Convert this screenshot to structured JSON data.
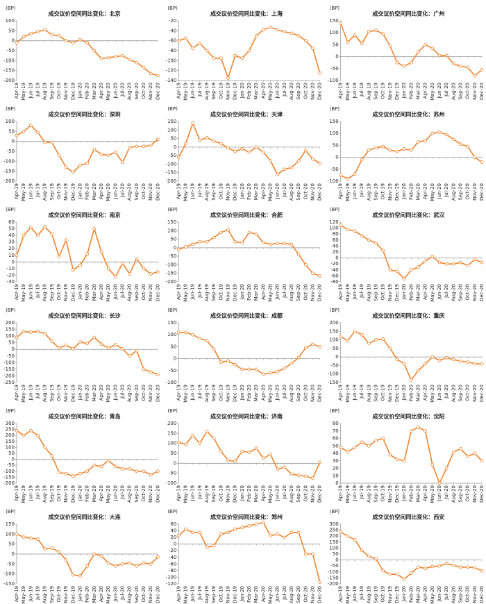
{
  "chart_data": [
    {
      "type": "line",
      "title": "成交议价空间同比变化：北京",
      "unit": "(BP)",
      "categories": [
        "Apr-19",
        "May-19",
        "Jun-19",
        "Jul-19",
        "Aug-19",
        "Sep-19",
        "Oct-19",
        "Nov-19",
        "Dec-19",
        "Jan-20",
        "Feb-20",
        "Mar-20",
        "Apr-20",
        "May-20",
        "Jun-20",
        "Jul-20",
        "Aug-20",
        "Sep-20",
        "Oct-20",
        "Nov-20",
        "Dec-20"
      ],
      "values": [
        -10,
        20,
        35,
        45,
        55,
        30,
        25,
        0,
        -10,
        5,
        -10,
        -50,
        -90,
        -85,
        -80,
        -75,
        -95,
        -110,
        -135,
        -165,
        -175
      ],
      "color": "#f0832a",
      "ylim": [
        -200,
        100
      ],
      "yticks": [
        -200,
        -150,
        -100,
        -50,
        0,
        50,
        100
      ]
    },
    {
      "type": "line",
      "title": "成交议价空间同比变化：上海",
      "unit": "(BP)",
      "categories": [
        "Apr-19",
        "May-19",
        "Jun-19",
        "Jul-19",
        "Aug-19",
        "Sep-19",
        "Oct-19",
        "Nov-19",
        "Dec-19",
        "Jan-20",
        "Feb-20",
        "Mar-20",
        "Apr-20",
        "May-20",
        "Jun-20",
        "Jul-20",
        "Aug-20",
        "Sep-20",
        "Oct-20",
        "Nov-20",
        "Dec-20"
      ],
      "values": [
        -60,
        -55,
        -75,
        -65,
        -80,
        -95,
        -95,
        -135,
        -90,
        -95,
        -80,
        -50,
        -38,
        -33,
        -38,
        -42,
        -45,
        -50,
        -60,
        -75,
        -125
      ],
      "color": "#f0832a",
      "ylim": [
        -140,
        -20
      ],
      "yticks": [
        -140,
        -120,
        -100,
        -80,
        -60,
        -40,
        -20
      ]
    },
    {
      "type": "line",
      "title": "成交议价空间同比变化：广州",
      "unit": "(BP)",
      "categories": [
        "Apr-19",
        "May-19",
        "Jun-19",
        "Jul-19",
        "Aug-19",
        "Sep-19",
        "Oct-19",
        "Nov-19",
        "Dec-19",
        "Jan-20",
        "Feb-20",
        "Mar-20",
        "Apr-20",
        "May-20",
        "Jun-20",
        "Jul-20",
        "Aug-20",
        "Sep-20",
        "Oct-20",
        "Nov-20",
        "Dec-20"
      ],
      "values": [
        140,
        60,
        90,
        55,
        105,
        110,
        95,
        45,
        -25,
        -40,
        -25,
        20,
        50,
        35,
        5,
        5,
        -30,
        -40,
        -45,
        -80,
        -55
      ],
      "color": "#f0832a",
      "ylim": [
        -100,
        150
      ],
      "yticks": [
        -100,
        -50,
        0,
        50,
        100,
        150
      ]
    },
    {
      "type": "line",
      "title": "成交议价空间同比变化：深圳",
      "unit": "(BP)",
      "categories": [
        "Apr-19",
        "May-19",
        "Jun-19",
        "Jul-19",
        "Aug-19",
        "Sep-19",
        "Oct-19",
        "Nov-19",
        "Dec-19",
        "Jan-20",
        "Feb-20",
        "Mar-20",
        "Apr-20",
        "May-20",
        "Jun-20",
        "Jul-20",
        "Aug-20",
        "Sep-20",
        "Oct-20",
        "Nov-20",
        "Dec-20"
      ],
      "values": [
        30,
        50,
        80,
        45,
        -5,
        -5,
        -70,
        -130,
        -155,
        -120,
        -110,
        -40,
        -65,
        -70,
        -55,
        -105,
        -30,
        -25,
        -25,
        -20,
        10
      ],
      "color": "#f0832a",
      "ylim": [
        -200,
        100
      ],
      "yticks": [
        -200,
        -150,
        -100,
        -50,
        0,
        50,
        100
      ]
    },
    {
      "type": "line",
      "title": "成交议价空间同比变化：天津",
      "unit": "(BP)",
      "categories": [
        "Apr-19",
        "May-19",
        "Jun-19",
        "Jul-19",
        "Aug-19",
        "Sep-19",
        "Oct-19",
        "Nov-19",
        "Dec-19",
        "Jan-20",
        "Feb-20",
        "Mar-20",
        "Apr-20",
        "May-20",
        "Jun-20",
        "Jul-20",
        "Aug-20",
        "Sep-20",
        "Oct-20",
        "Nov-20",
        "Dec-20"
      ],
      "values": [
        -60,
        20,
        140,
        40,
        55,
        35,
        20,
        -5,
        -25,
        -10,
        -30,
        0,
        -30,
        -80,
        -160,
        -130,
        -120,
        -80,
        -20,
        -70,
        -95
      ],
      "color": "#f0832a",
      "ylim": [
        -200,
        150
      ],
      "yticks": [
        -200,
        -150,
        -100,
        -50,
        0,
        50,
        100,
        150
      ]
    },
    {
      "type": "line",
      "title": "成交议价空间同比变化：苏州",
      "unit": "(BP)",
      "categories": [
        "Apr-19",
        "May-19",
        "Jun-19",
        "Jul-19",
        "Aug-19",
        "Sep-19",
        "Oct-19",
        "Nov-19",
        "Dec-19",
        "Jan-20",
        "Feb-20",
        "Mar-20",
        "Apr-20",
        "May-20",
        "Jun-20",
        "Jul-20",
        "Aug-20",
        "Sep-20",
        "Oct-20",
        "Nov-20",
        "Dec-20"
      ],
      "values": [
        -75,
        -90,
        -70,
        -10,
        30,
        40,
        45,
        30,
        25,
        35,
        30,
        65,
        70,
        100,
        105,
        95,
        75,
        55,
        45,
        0,
        -20
      ],
      "color": "#f0832a",
      "ylim": [
        -100,
        150
      ],
      "yticks": [
        -100,
        -50,
        0,
        50,
        100,
        150
      ]
    },
    {
      "type": "line",
      "title": "成交议价空间同比变化：南京",
      "unit": "(BP)",
      "categories": [
        "Apr-19",
        "May-19",
        "Jun-19",
        "Jul-19",
        "Aug-19",
        "Sep-19",
        "Oct-19",
        "Nov-19",
        "Dec-19",
        "Jan-20",
        "Feb-20",
        "Mar-20",
        "Apr-20",
        "May-20",
        "Jun-20",
        "Jul-20",
        "Aug-20",
        "Sep-20",
        "Oct-20",
        "Nov-20",
        "Dec-20"
      ],
      "values": [
        10,
        40,
        52,
        40,
        53,
        42,
        8,
        33,
        -12,
        -5,
        12,
        50,
        15,
        -10,
        -22,
        -2,
        -18,
        5,
        -10,
        -18,
        -15
      ],
      "color": "#f0832a",
      "ylim": [
        -30,
        60
      ],
      "yticks": [
        -30,
        -20,
        -10,
        0,
        10,
        20,
        30,
        40,
        50,
        60
      ]
    },
    {
      "type": "line",
      "title": "成交议价空间同比变化：合肥",
      "unit": "(BP)",
      "categories": [
        "Apr-19",
        "May-19",
        "Jun-19",
        "Jul-19",
        "Aug-19",
        "Sep-19",
        "Oct-19",
        "Nov-19",
        "Dec-19",
        "Jan-20",
        "Feb-20",
        "Mar-20",
        "Apr-20",
        "May-20",
        "Jun-20",
        "Jul-20",
        "Aug-20",
        "Sep-20",
        "Oct-20",
        "Nov-20",
        "Dec-20"
      ],
      "values": [
        -10,
        5,
        20,
        35,
        35,
        60,
        90,
        105,
        35,
        30,
        90,
        80,
        30,
        20,
        25,
        25,
        20,
        -40,
        -100,
        -150,
        -165
      ],
      "color": "#f0832a",
      "ylim": [
        -200,
        150
      ],
      "yticks": [
        -200,
        -150,
        -100,
        -50,
        0,
        50,
        100,
        150
      ]
    },
    {
      "type": "line",
      "title": "成交议价空间同比变化：武汉",
      "unit": "(BP)",
      "categories": [
        "Apr-19",
        "May-19",
        "Jun-19",
        "Jul-19",
        "Aug-19",
        "Sep-19",
        "Oct-19",
        "Nov-19",
        "Dec-19",
        "Jan-20",
        "Feb-20",
        "Mar-20",
        "Apr-20",
        "May-20",
        "Jun-20",
        "Jul-20",
        "Aug-20",
        "Sep-20",
        "Oct-20",
        "Nov-20",
        "Dec-20"
      ],
      "values": [
        110,
        95,
        90,
        75,
        60,
        50,
        25,
        -40,
        -45,
        -70,
        -40,
        -30,
        -10,
        5,
        -15,
        -20,
        -20,
        -15,
        -25,
        -5,
        -15
      ],
      "color": "#f0832a",
      "ylim": [
        -80,
        120
      ],
      "yticks": [
        -80,
        -60,
        -40,
        -20,
        0,
        20,
        40,
        60,
        80,
        100,
        120
      ]
    },
    {
      "type": "line",
      "title": "成交议价空间同比变化：长沙",
      "unit": "(BP)",
      "categories": [
        "Apr-19",
        "May-19",
        "Jun-19",
        "Jul-19",
        "Aug-19",
        "Sep-19",
        "Oct-19",
        "Nov-19",
        "Dec-19",
        "Jan-20",
        "Feb-20",
        "Mar-20",
        "Apr-20",
        "May-20",
        "Jun-20",
        "Jul-20",
        "Aug-20",
        "Sep-20",
        "Oct-20",
        "Nov-20",
        "Dec-20"
      ],
      "values": [
        90,
        135,
        130,
        135,
        120,
        60,
        10,
        30,
        5,
        55,
        45,
        90,
        40,
        10,
        35,
        5,
        -50,
        -10,
        -150,
        -170,
        -190
      ],
      "color": "#f0832a",
      "ylim": [
        -250,
        200
      ],
      "yticks": [
        -250,
        -200,
        -150,
        -100,
        -50,
        0,
        50,
        100,
        150,
        200
      ]
    },
    {
      "type": "line",
      "title": "成交议价空间同比变化：成都",
      "unit": "(BP)",
      "categories": [
        "Apr-19",
        "May-19",
        "Jun-19",
        "Jul-19",
        "Aug-19",
        "Sep-19",
        "Oct-19",
        "Nov-19",
        "Dec-19",
        "Jan-20",
        "Feb-20",
        "Mar-20",
        "Apr-20",
        "May-20",
        "Jun-20",
        "Jul-20",
        "Aug-20",
        "Sep-20",
        "Oct-20",
        "Nov-20",
        "Dec-20"
      ],
      "values": [
        110,
        110,
        100,
        85,
        75,
        40,
        -15,
        -10,
        -25,
        -45,
        -45,
        -45,
        -65,
        -60,
        -55,
        -40,
        -20,
        5,
        45,
        60,
        50
      ],
      "color": "#f0832a",
      "ylim": [
        -100,
        150
      ],
      "yticks": [
        -100,
        -50,
        0,
        50,
        100,
        150
      ]
    },
    {
      "type": "line",
      "title": "成交议价空间同比变化：重庆",
      "unit": "(BP)",
      "categories": [
        "Apr-19",
        "May-19",
        "Jun-19",
        "Jul-19",
        "Aug-19",
        "Sep-19",
        "Oct-19",
        "Nov-19",
        "Dec-19",
        "Jan-20",
        "Feb-20",
        "Mar-20",
        "Apr-20",
        "May-20",
        "Jun-20",
        "Jul-20",
        "Aug-20",
        "Sep-20",
        "Oct-20",
        "Nov-20",
        "Dec-20"
      ],
      "values": [
        120,
        95,
        150,
        130,
        80,
        100,
        105,
        50,
        -15,
        -40,
        -135,
        -80,
        -40,
        0,
        -20,
        -5,
        -15,
        -25,
        -30,
        -40,
        -40
      ],
      "color": "#f0832a",
      "ylim": [
        -150,
        200
      ],
      "yticks": [
        -150,
        -100,
        -50,
        0,
        50,
        100,
        150,
        200
      ]
    },
    {
      "type": "line",
      "title": "成交议价空间同比变化：青岛",
      "unit": "(BP)",
      "categories": [
        "Apr-19",
        "May-19",
        "Jun-19",
        "Jul-19",
        "Aug-19",
        "Sep-19",
        "Oct-19",
        "Nov-19",
        "Dec-19",
        "Jan-20",
        "Feb-20",
        "Mar-20",
        "Apr-20",
        "May-20",
        "Jun-20",
        "Jul-20",
        "Aug-20",
        "Sep-20",
        "Oct-20",
        "Nov-20",
        "Dec-20"
      ],
      "values": [
        240,
        200,
        240,
        200,
        100,
        30,
        -110,
        -120,
        -140,
        -120,
        -100,
        -50,
        -60,
        -10,
        -60,
        -80,
        -80,
        -100,
        -100,
        -130,
        -100
      ],
      "color": "#f0832a",
      "ylim": [
        -200,
        300
      ],
      "yticks": [
        -200,
        -150,
        -100,
        -50,
        0,
        50,
        100,
        150,
        200,
        250,
        300
      ]
    },
    {
      "type": "line",
      "title": "成交议价空间同比变化：济南",
      "unit": "(BP)",
      "categories": [
        "Apr-19",
        "May-19",
        "Jun-19",
        "Jul-19",
        "Aug-19",
        "Sep-19",
        "Oct-19",
        "Nov-19",
        "Dec-19",
        "Jan-20",
        "Feb-20",
        "Mar-20",
        "Apr-20",
        "May-20",
        "Jun-20",
        "Jul-20",
        "Aug-20",
        "Sep-20",
        "Oct-20",
        "Nov-20",
        "Dec-20"
      ],
      "values": [
        105,
        95,
        140,
        100,
        160,
        125,
        60,
        15,
        10,
        60,
        55,
        75,
        25,
        45,
        -30,
        -20,
        -55,
        -60,
        -65,
        -75,
        5
      ],
      "color": "#f0832a",
      "ylim": [
        -100,
        200
      ],
      "yticks": [
        -100,
        -50,
        0,
        50,
        100,
        150,
        200
      ]
    },
    {
      "type": "line",
      "title": "成交议价空间同比变化：沈阳",
      "unit": "(BP)",
      "categories": [
        "Apr-19",
        "May-19",
        "Jun-19",
        "Jul-19",
        "Aug-19",
        "Sep-19",
        "Oct-19",
        "Nov-19",
        "Dec-19",
        "Jan-20",
        "Feb-20",
        "Mar-20",
        "Apr-20",
        "May-20",
        "Jun-20",
        "Jul-20",
        "Aug-20",
        "Sep-20",
        "Oct-20",
        "Nov-20",
        "Dec-20"
      ],
      "values": [
        48,
        42,
        48,
        55,
        50,
        57,
        60,
        38,
        32,
        30,
        70,
        75,
        70,
        25,
        0,
        20,
        42,
        46,
        36,
        40,
        30
      ],
      "color": "#f0832a",
      "ylim": [
        0,
        80
      ],
      "yticks": [
        0,
        10,
        20,
        30,
        40,
        50,
        60,
        70,
        80
      ]
    },
    {
      "type": "line",
      "title": "成交议价空间同比变化：大连",
      "unit": "(BP)",
      "categories": [
        "Apr-19",
        "May-19",
        "Jun-19",
        "Jul-19",
        "Aug-19",
        "Sep-19",
        "Oct-19",
        "Nov-19",
        "Dec-19",
        "Jan-20",
        "Feb-20",
        "Mar-20",
        "Apr-20",
        "May-20",
        "Jun-20",
        "Jul-20",
        "Aug-20",
        "Sep-20",
        "Oct-20",
        "Nov-20",
        "Dec-20"
      ],
      "values": [
        100,
        85,
        80,
        75,
        25,
        30,
        10,
        -30,
        -105,
        -110,
        -60,
        0,
        -10,
        -45,
        -60,
        -50,
        -45,
        -60,
        -45,
        -50,
        -15
      ],
      "color": "#f0832a",
      "ylim": [
        -150,
        150
      ],
      "yticks": [
        -150,
        -100,
        -50,
        0,
        50,
        100,
        150
      ]
    },
    {
      "type": "line",
      "title": "成交议价空间同比变化：郑州",
      "unit": "(BP)",
      "categories": [
        "Apr-19",
        "May-19",
        "Jun-19",
        "Jul-19",
        "Aug-19",
        "Sep-19",
        "Oct-19",
        "Nov-19",
        "Dec-19",
        "Jan-20",
        "Feb-20",
        "Mar-20",
        "Apr-20",
        "May-20",
        "Jun-20",
        "Jul-20",
        "Aug-20",
        "Sep-20",
        "Oct-20",
        "Nov-20",
        "Dec-20"
      ],
      "values": [
        25,
        45,
        35,
        35,
        -10,
        -5,
        30,
        35,
        45,
        50,
        55,
        60,
        65,
        25,
        30,
        20,
        35,
        35,
        -30,
        -30,
        -115
      ],
      "color": "#f0832a",
      "ylim": [
        -120,
        60
      ],
      "yticks": [
        -120,
        -100,
        -80,
        -60,
        -40,
        -20,
        0,
        20,
        40,
        60
      ]
    },
    {
      "type": "line",
      "title": "成交议价空间同比变化：西安",
      "unit": "(BP)",
      "categories": [
        "Apr-19",
        "May-19",
        "Jun-19",
        "Jul-19",
        "Aug-19",
        "Sep-19",
        "Oct-19",
        "Nov-19",
        "Dec-19",
        "Jan-20",
        "Feb-20",
        "Mar-20",
        "Apr-20",
        "May-20",
        "Jun-20",
        "Jul-20",
        "Aug-20",
        "Sep-20",
        "Oct-20",
        "Nov-20",
        "Dec-20"
      ],
      "values": [
        235,
        200,
        170,
        80,
        30,
        10,
        -90,
        -120,
        -120,
        -160,
        -110,
        -60,
        -70,
        -55,
        -50,
        -30,
        -45,
        -60,
        -60,
        -65,
        -90
      ],
      "color": "#f0832a",
      "ylim": [
        -200,
        300
      ],
      "yticks": [
        -200,
        -150,
        -100,
        -50,
        0,
        50,
        100,
        150,
        200,
        250,
        300
      ]
    }
  ]
}
